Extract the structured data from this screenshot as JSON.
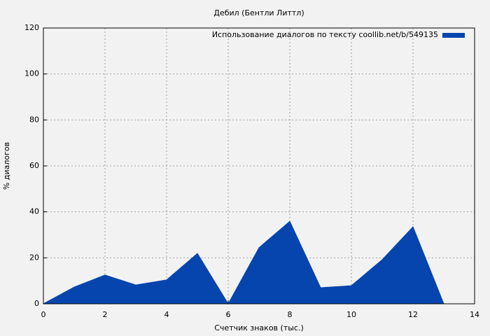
{
  "chart_data": {
    "type": "area",
    "title": "Дебил (Бентли Литтл)",
    "xlabel": "Счетчик знаков (тыс.)",
    "ylabel": "% диалогов",
    "x": [
      0,
      1,
      2,
      3,
      4,
      5,
      6,
      7,
      8,
      9,
      10,
      11,
      12,
      13
    ],
    "series": [
      {
        "name": "Использование диалогов по тексту  coollib.net/b/549135",
        "color": "#0645ad",
        "values": [
          0,
          7.3,
          12.5,
          8.2,
          10.4,
          21.9,
          0,
          24.4,
          35.9,
          7,
          7.9,
          19.2,
          33.5,
          0
        ]
      }
    ],
    "xlim": [
      0,
      14
    ],
    "xticks": [
      0,
      2,
      4,
      6,
      8,
      10,
      12,
      14
    ],
    "ylim": [
      0,
      120
    ],
    "yticks": [
      0,
      20,
      40,
      60,
      80,
      100,
      120
    ],
    "grid": true,
    "legend": "top-right"
  }
}
